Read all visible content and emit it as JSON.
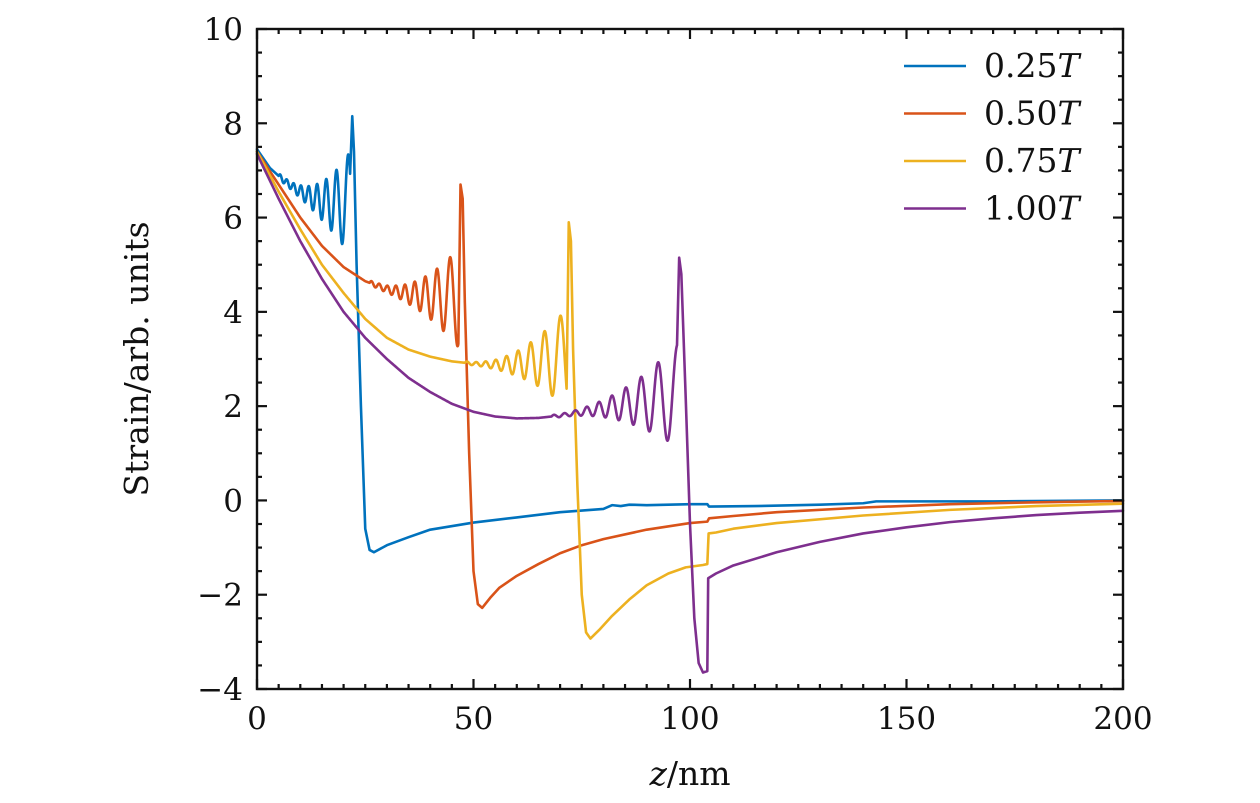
{
  "chart_data": {
    "type": "line",
    "xlabel_var": "z",
    "xlabel_unit": "/nm",
    "ylabel": "Strain/arb. units",
    "xlim": [
      0,
      200
    ],
    "ylim": [
      -4,
      10
    ],
    "xticks": [
      0,
      50,
      100,
      150,
      200
    ],
    "xtick_labels": [
      "0",
      "50",
      "100",
      "150",
      "200"
    ],
    "yticks": [
      -4,
      -2,
      0,
      2,
      4,
      6,
      8,
      10
    ],
    "ytick_labels": [
      "−4",
      "−2",
      "0",
      "2",
      "4",
      "6",
      "8",
      "10"
    ],
    "legend_position": "top-right",
    "series": [
      {
        "name": "0.25T",
        "label_num": "0.25",
        "label_var": "T",
        "color": "#0072BD",
        "smooth": [
          [
            0,
            7.45
          ],
          [
            3,
            7.05
          ],
          [
            6,
            6.8
          ],
          [
            9,
            6.6
          ],
          [
            12,
            6.45
          ],
          [
            15,
            6.35
          ],
          [
            18,
            6.3
          ],
          [
            20,
            6.3
          ]
        ],
        "osc": {
          "start": 5,
          "end": 21.5,
          "omega": 3.2,
          "amp0": 0.06,
          "amp1": 1.1
        },
        "tail": [
          [
            21.5,
            6.6
          ],
          [
            22,
            8.15
          ],
          [
            22.4,
            7.4
          ],
          [
            23,
            5.0
          ],
          [
            24,
            2.0
          ],
          [
            25,
            -0.6
          ],
          [
            26,
            -1.05
          ],
          [
            27,
            -1.1
          ],
          [
            30,
            -0.95
          ],
          [
            35,
            -0.78
          ],
          [
            40,
            -0.62
          ],
          [
            50,
            -0.47
          ],
          [
            60,
            -0.36
          ],
          [
            70,
            -0.25
          ],
          [
            80,
            -0.18
          ],
          [
            82,
            -0.1
          ],
          [
            84,
            -0.12
          ],
          [
            86,
            -0.09
          ],
          [
            90,
            -0.1
          ],
          [
            100,
            -0.08
          ],
          [
            104,
            -0.08
          ],
          [
            104.4,
            -0.13
          ],
          [
            115,
            -0.12
          ],
          [
            130,
            -0.09
          ],
          [
            140,
            -0.06
          ],
          [
            143,
            -0.02
          ],
          [
            150,
            -0.02
          ],
          [
            170,
            -0.02
          ],
          [
            200,
            0.0
          ]
        ]
      },
      {
        "name": "0.50T",
        "label_num": "0.50",
        "label_var": "T",
        "color": "#D95319",
        "smooth": [
          [
            0,
            7.4
          ],
          [
            5,
            6.7
          ],
          [
            10,
            6.0
          ],
          [
            15,
            5.4
          ],
          [
            20,
            4.95
          ],
          [
            25,
            4.65
          ],
          [
            30,
            4.48
          ],
          [
            35,
            4.38
          ],
          [
            40,
            4.33
          ],
          [
            45,
            4.3
          ]
        ],
        "osc": {
          "start": 26,
          "end": 46.5,
          "omega": 2.7,
          "amp0": 0.05,
          "amp1": 1.05
        },
        "tail": [
          [
            46.5,
            5.3
          ],
          [
            47,
            6.7
          ],
          [
            47.5,
            6.4
          ],
          [
            48,
            4.2
          ],
          [
            49,
            1.0
          ],
          [
            50,
            -1.5
          ],
          [
            51,
            -2.2
          ],
          [
            52,
            -2.28
          ],
          [
            54,
            -2.05
          ],
          [
            56,
            -1.85
          ],
          [
            60,
            -1.6
          ],
          [
            65,
            -1.35
          ],
          [
            70,
            -1.12
          ],
          [
            75,
            -0.95
          ],
          [
            80,
            -0.82
          ],
          [
            90,
            -0.62
          ],
          [
            100,
            -0.48
          ],
          [
            104,
            -0.45
          ],
          [
            104.4,
            -0.38
          ],
          [
            110,
            -0.33
          ],
          [
            120,
            -0.25
          ],
          [
            140,
            -0.15
          ],
          [
            160,
            -0.08
          ],
          [
            180,
            -0.04
          ],
          [
            200,
            -0.01
          ]
        ]
      },
      {
        "name": "0.75T",
        "label_num": "0.75",
        "label_var": "T",
        "color": "#EDB120",
        "smooth": [
          [
            0,
            7.4
          ],
          [
            5,
            6.55
          ],
          [
            10,
            5.75
          ],
          [
            15,
            5.0
          ],
          [
            20,
            4.4
          ],
          [
            25,
            3.85
          ],
          [
            30,
            3.45
          ],
          [
            35,
            3.2
          ],
          [
            40,
            3.05
          ],
          [
            45,
            2.95
          ],
          [
            50,
            2.9
          ],
          [
            55,
            2.88
          ],
          [
            60,
            2.9
          ],
          [
            65,
            2.95
          ],
          [
            70,
            3.0
          ]
        ],
        "osc": {
          "start": 48,
          "end": 71.5,
          "omega": 2.3,
          "amp0": 0.03,
          "amp1": 1.05
        },
        "tail": [
          [
            71.5,
            4.9
          ],
          [
            72,
            5.9
          ],
          [
            72.5,
            5.5
          ],
          [
            73,
            3.2
          ],
          [
            74,
            0.3
          ],
          [
            75,
            -2.0
          ],
          [
            76,
            -2.8
          ],
          [
            77,
            -2.93
          ],
          [
            79,
            -2.75
          ],
          [
            82,
            -2.45
          ],
          [
            86,
            -2.1
          ],
          [
            90,
            -1.8
          ],
          [
            95,
            -1.55
          ],
          [
            99,
            -1.42
          ],
          [
            103,
            -1.37
          ],
          [
            104,
            -1.35
          ],
          [
            104.3,
            -0.7
          ],
          [
            106,
            -0.68
          ],
          [
            110,
            -0.6
          ],
          [
            120,
            -0.48
          ],
          [
            140,
            -0.32
          ],
          [
            160,
            -0.2
          ],
          [
            180,
            -0.12
          ],
          [
            200,
            -0.07
          ]
        ]
      },
      {
        "name": "1.00T",
        "label_num": "1.00",
        "label_var": "T",
        "color": "#7E2F8E",
        "smooth": [
          [
            0,
            7.35
          ],
          [
            5,
            6.4
          ],
          [
            10,
            5.5
          ],
          [
            15,
            4.7
          ],
          [
            20,
            4.0
          ],
          [
            25,
            3.45
          ],
          [
            30,
            3.0
          ],
          [
            35,
            2.6
          ],
          [
            40,
            2.3
          ],
          [
            45,
            2.05
          ],
          [
            50,
            1.88
          ],
          [
            55,
            1.78
          ],
          [
            60,
            1.74
          ],
          [
            65,
            1.75
          ],
          [
            70,
            1.8
          ],
          [
            80,
            1.95
          ],
          [
            90,
            2.1
          ],
          [
            95,
            2.2
          ]
        ],
        "osc": {
          "start": 68,
          "end": 97,
          "omega": 2.0,
          "amp0": 0.03,
          "amp1": 1.1
        },
        "tail": [
          [
            97,
            4.4
          ],
          [
            97.5,
            5.15
          ],
          [
            98,
            4.8
          ],
          [
            99,
            2.2
          ],
          [
            100,
            -0.5
          ],
          [
            101,
            -2.5
          ],
          [
            102,
            -3.45
          ],
          [
            103,
            -3.65
          ],
          [
            104,
            -3.62
          ],
          [
            104.2,
            -1.65
          ],
          [
            106,
            -1.55
          ],
          [
            110,
            -1.38
          ],
          [
            120,
            -1.1
          ],
          [
            130,
            -0.88
          ],
          [
            140,
            -0.7
          ],
          [
            150,
            -0.57
          ],
          [
            160,
            -0.46
          ],
          [
            170,
            -0.38
          ],
          [
            180,
            -0.31
          ],
          [
            190,
            -0.26
          ],
          [
            200,
            -0.22
          ]
        ]
      }
    ]
  }
}
